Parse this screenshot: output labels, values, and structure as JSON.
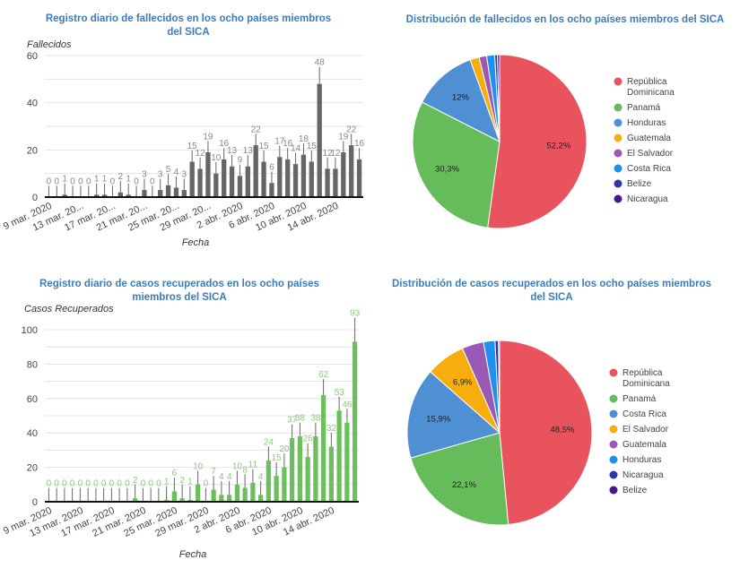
{
  "chart_data": [
    {
      "type": "bar",
      "title": "Registro diario de fallecidos en los ocho países miembros del SICA",
      "xlabel": "Fecha",
      "ylabel": "Fallecidos",
      "ylim": [
        0,
        60
      ],
      "yticks": [
        0,
        20,
        40,
        60
      ],
      "grid": true,
      "color": "#666666",
      "xtick_labels": [
        "9 mar. 2020",
        "13 mar. 20...",
        "17 mar. 20...",
        "21 mar. 20...",
        "25 mar. 20...",
        "29 mar. 20...",
        "2 abr. 2020",
        "6 abr. 2020",
        "10 abr. 2020",
        "14 abr. 2020"
      ],
      "values": [
        0,
        0,
        1,
        0,
        0,
        0,
        1,
        1,
        0,
        2,
        1,
        0,
        3,
        0,
        3,
        5,
        4,
        3,
        15,
        12,
        19,
        10,
        16,
        13,
        9,
        13,
        22,
        15,
        6,
        17,
        16,
        14,
        18,
        15,
        48,
        12,
        12,
        19,
        22,
        16
      ]
    },
    {
      "type": "pie",
      "title": "Distribución de fallecidos en los ocho países miembros del SICA",
      "legend": "right",
      "slices": [
        {
          "label": "República Dominicana",
          "value": 52.2,
          "color": "#e8535e",
          "text": "52,2%"
        },
        {
          "label": "Panamá",
          "value": 30.3,
          "color": "#66bb5a",
          "text": "30,3%"
        },
        {
          "label": "Honduras",
          "value": 12,
          "color": "#4f8fd4",
          "text": "12%"
        },
        {
          "label": "Guatemala",
          "value": 1.7,
          "color": "#f7ad0e",
          "text": ""
        },
        {
          "label": "El Salvador",
          "value": 1.4,
          "color": "#9b59b6",
          "text": ""
        },
        {
          "label": "Costa Rica",
          "value": 1.5,
          "color": "#1e90f0",
          "text": ""
        },
        {
          "label": "Belize",
          "value": 0.5,
          "color": "#2c3aa8",
          "text": ""
        },
        {
          "label": "Nicaragua",
          "value": 0.4,
          "color": "#4a148c",
          "text": ""
        }
      ]
    },
    {
      "type": "bar",
      "title": "Registro diario de casos recuperados en los ocho países miembros del SICA",
      "xlabel": "Fecha",
      "ylabel": "Casos Recuperados",
      "ylim": [
        0,
        100
      ],
      "yticks": [
        0,
        20,
        40,
        60,
        80,
        100
      ],
      "grid": true,
      "color": "#6dbf5e",
      "xtick_labels": [
        "9 mar. 2020",
        "13 mar. 2020",
        "17 mar. 2020",
        "21 mar. 2020",
        "25 mar. 2020",
        "29 mar. 2020",
        "2 abr. 2020",
        "6 abr. 2020",
        "10 abr. 2020",
        "14 abr. 2020"
      ],
      "values": [
        0,
        0,
        0,
        0,
        0,
        0,
        0,
        0,
        0,
        0,
        0,
        2,
        0,
        0,
        0,
        1,
        6,
        2,
        1,
        10,
        0,
        7,
        4,
        4,
        10,
        8,
        11,
        4,
        24,
        15,
        20,
        37,
        38,
        26,
        38,
        62,
        32,
        53,
        46,
        93
      ]
    },
    {
      "type": "pie",
      "title": "Distribución de casos recuperados en los ocho países miembros del SICA",
      "legend": "right",
      "slices": [
        {
          "label": "República Dominicana",
          "value": 48.5,
          "color": "#e8535e",
          "text": "48,5%"
        },
        {
          "label": "Panamá",
          "value": 22.1,
          "color": "#66bb5a",
          "text": "22,1%"
        },
        {
          "label": "Costa Rica",
          "value": 15.9,
          "color": "#4f8fd4",
          "text": "15,9%"
        },
        {
          "label": "El Salvador",
          "value": 6.9,
          "color": "#f7ad0e",
          "text": "6,9%"
        },
        {
          "label": "Guatemala",
          "value": 3.8,
          "color": "#9b59b6",
          "text": ""
        },
        {
          "label": "Honduras",
          "value": 2.0,
          "color": "#1e90f0",
          "text": ""
        },
        {
          "label": "Nicaragua",
          "value": 0.6,
          "color": "#2c3aa8",
          "text": ""
        },
        {
          "label": "Belize",
          "value": 0.2,
          "color": "#4a148c",
          "text": ""
        }
      ]
    }
  ]
}
